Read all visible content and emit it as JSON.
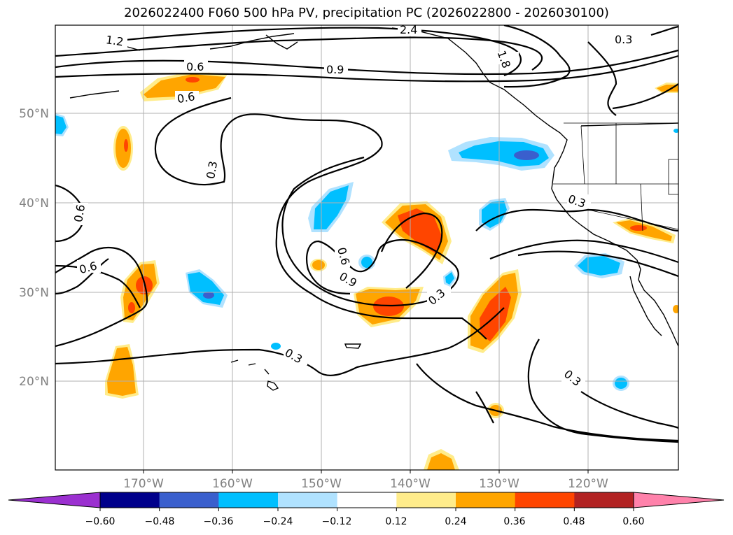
{
  "title": "2026022400 F060 500 hPa PV, precipitation PC (2026022800 - 2026030100)",
  "map": {
    "lon_ticks": [
      "170°W",
      "160°W",
      "150°W",
      "140°W",
      "130°W",
      "120°W"
    ],
    "lat_ticks": [
      "50°N",
      "40°N",
      "30°N",
      "20°N"
    ],
    "contour_labels": [
      "1.2",
      "0.6",
      "0.6",
      "2.4",
      "0.9",
      "1.8",
      "0.3",
      "0.3",
      "0.6",
      "0.6",
      "0.6",
      "0.9",
      "0.3",
      "0.3",
      "0.3",
      "0.3"
    ]
  },
  "colorbar": {
    "ticks": [
      "−0.60",
      "−0.48",
      "−0.36",
      "−0.24",
      "−0.12",
      "0.12",
      "0.24",
      "0.36",
      "0.48",
      "0.60"
    ],
    "colors": [
      "#9b30d0",
      "#00008b",
      "#3a5fcd",
      "#00bfff",
      "#b0e2ff",
      "#ffffff",
      "#ffec8b",
      "#ffa500",
      "#ff4500",
      "#b22222",
      "#ff82ab"
    ]
  }
}
